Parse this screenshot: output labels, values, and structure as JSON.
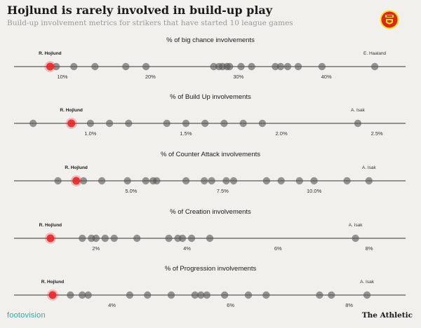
{
  "header": {
    "title": "Hojlund is rarely involved in build-up play",
    "subtitle": "Build-up involvement metrics for strikers that have started 10 league games"
  },
  "footer": {
    "source_logo": "footovision",
    "publisher": "The Athletic"
  },
  "colors": {
    "highlight": "#e8262a",
    "dot": "#555555",
    "line": "#333333",
    "crest_red": "#da291c",
    "crest_yellow": "#fbe122"
  },
  "icons": {
    "crest": "manchester-united-crest-icon"
  },
  "chart_data": [
    {
      "type": "scatter",
      "title": "% of big chance involvements",
      "tick_values": [
        10,
        20,
        30,
        40
      ],
      "tick_labels": [
        "10%",
        "20%",
        "30%",
        "40%"
      ],
      "xlim": [
        4.5,
        49
      ],
      "highlight": {
        "label": "R. Hojlund",
        "value": 8.6
      },
      "max_label": {
        "label": "E. Haaland",
        "value": 45.5
      },
      "values": [
        9.3,
        11.3,
        13.7,
        17.2,
        19.5,
        27.2,
        27.8,
        28.2,
        28.7,
        29.0,
        30.3,
        31.5,
        34.2,
        34.8,
        35.6,
        36.8,
        39.5
      ]
    },
    {
      "type": "scatter",
      "title": "% of Build Up involvements",
      "tick_values": [
        1.0,
        1.5,
        2.0,
        2.5
      ],
      "tick_labels": [
        "1.0%",
        "1.5%",
        "2.0%",
        "2.5%"
      ],
      "xlim": [
        0.6,
        2.65
      ],
      "highlight": {
        "label": "R. Hojlund",
        "value": 0.9
      },
      "max_label": {
        "label": "A. Isak",
        "value": 2.4
      },
      "values": [
        0.7,
        1.0,
        1.1,
        1.2,
        1.4,
        1.5,
        1.6,
        1.7,
        1.8,
        1.9
      ]
    },
    {
      "type": "scatter",
      "title": "% of Counter Attack involvements",
      "tick_values": [
        5.0,
        7.5,
        10.0
      ],
      "tick_labels": [
        "5.0%",
        "7.5%",
        "10.0%"
      ],
      "xlim": [
        1.8,
        12.5
      ],
      "highlight": {
        "label": "R. Hojlund",
        "value": 3.5
      },
      "max_label": {
        "label": "A. Isak",
        "value": 11.5
      },
      "values": [
        3.0,
        3.7,
        4.2,
        4.9,
        5.4,
        5.6,
        5.7,
        6.5,
        7.0,
        7.2,
        7.6,
        7.8,
        8.7,
        9.1,
        9.6,
        10.0,
        10.9
      ]
    },
    {
      "type": "scatter",
      "title": "% of Creation involvements",
      "tick_values": [
        2,
        4,
        6,
        8
      ],
      "tick_labels": [
        "2%",
        "4%",
        "6%",
        "8%"
      ],
      "xlim": [
        0.2,
        8.8
      ],
      "highlight": {
        "label": "R. Hojlund",
        "value": 1.0
      },
      "max_label": {
        "label": "A. Isak",
        "value": 7.7
      },
      "values": [
        1.7,
        1.9,
        2.0,
        2.2,
        2.4,
        2.9,
        3.6,
        3.8,
        3.9,
        4.1,
        4.5
      ]
    },
    {
      "type": "scatter",
      "title": "% of Progression involvements",
      "tick_values": [
        4,
        6,
        8
      ],
      "tick_labels": [
        "4%",
        "6%",
        "8%"
      ],
      "xlim": [
        2.35,
        8.95
      ],
      "highlight": {
        "label": "R. Hojlund",
        "value": 3.0
      },
      "max_label": {
        "label": "A. Isak",
        "value": 8.3
      },
      "values": [
        3.3,
        3.5,
        3.6,
        4.3,
        4.6,
        5.0,
        5.4,
        5.5,
        5.6,
        5.9,
        6.3,
        6.6,
        7.5,
        7.7
      ]
    }
  ]
}
